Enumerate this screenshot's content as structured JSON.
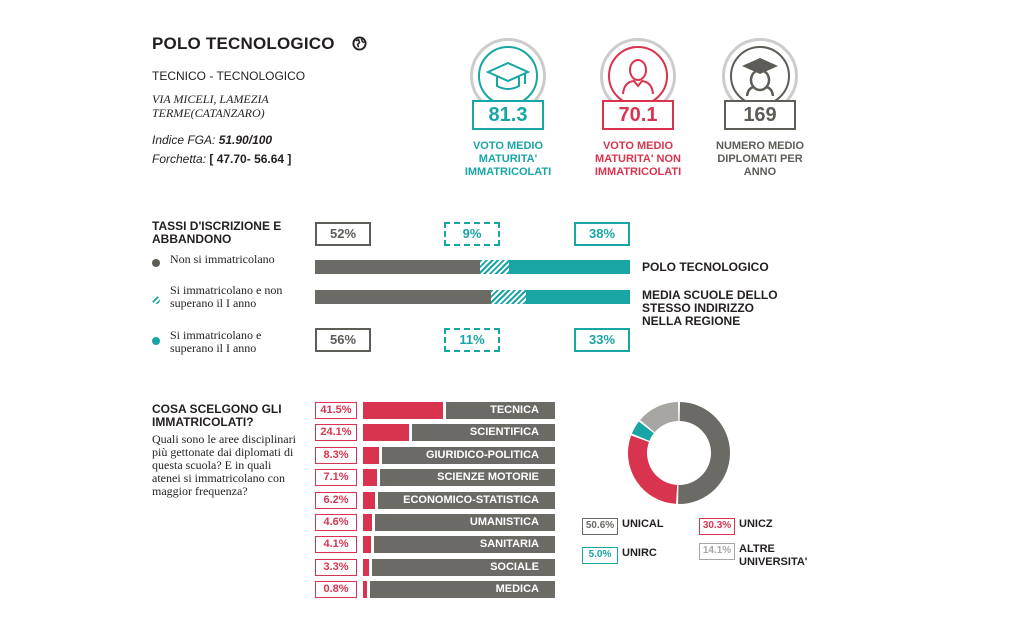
{
  "school": {
    "name": "POLO TECNOLOGICO",
    "type": "TECNICO - TECNOLOGICO",
    "address": "VIA MICELI, LAMEZIA TERME(CATANZARO)",
    "index_label": "Indice FGA:",
    "index_value": "51.90/100",
    "range_label": "Forchetta:",
    "range_value": "[ 47.70- 56.64 ]"
  },
  "stats": [
    {
      "value": "81.3",
      "label": "VOTO MEDIO MATURITA' IMMATRICOLATI",
      "color": "#1aa5a5",
      "icon": "graduation-cap-icon"
    },
    {
      "value": "70.1",
      "label": "VOTO MEDIO MATURITA' NON IMMATRICOLATI",
      "color": "#d9344f",
      "icon": "person-icon"
    },
    {
      "value": "169",
      "label": "NUMERO MEDIO DIPLOMATI PER ANNO",
      "color": "#5d5c57",
      "icon": "graduate-icon"
    }
  ],
  "enrollment": {
    "heading": "TASSI D'ISCRIZIONE E ABBANDONO",
    "legend": [
      {
        "label": "Non si immatricolano",
        "color": "#5d5c57"
      },
      {
        "label": "Si immatricolano e non superano il I anno",
        "color": "#1aa5a5",
        "pattern": "hatched"
      },
      {
        "label": "Si immatricolano e superano il I anno",
        "color": "#1aa5a5"
      }
    ],
    "school": {
      "label": "POLO TECNOLOGICO",
      "values": [
        "52%",
        "9%",
        "38%"
      ],
      "fractions": [
        0.52,
        0.09,
        0.38
      ]
    },
    "region": {
      "label": "MEDIA SCUOLE DELLO STESSO INDIRIZZO NELLA REGIONE",
      "values": [
        "56%",
        "11%",
        "33%"
      ],
      "fractions": [
        0.56,
        0.11,
        0.33
      ]
    }
  },
  "choices": {
    "heading": "COSA SCELGONO GLI IMMATRICOLATI?",
    "question": "Quali sono le aree disciplinari più gettonate dai diplomati di questa scuola? E in quali atenei si immatricolano con maggior frequenza?",
    "areas": [
      {
        "pct": "41.5%",
        "value": 41.5,
        "label": "TECNICA"
      },
      {
        "pct": "24.1%",
        "value": 24.1,
        "label": "SCIENTIFICA"
      },
      {
        "pct": "8.3%",
        "value": 8.3,
        "label": "GIURIDICO-POLITICA"
      },
      {
        "pct": "7.1%",
        "value": 7.1,
        "label": "SCIENZE MOTORIE"
      },
      {
        "pct": "6.2%",
        "value": 6.2,
        "label": "ECONOMICO-STATISTICA"
      },
      {
        "pct": "4.6%",
        "value": 4.6,
        "label": "UMANISTICA"
      },
      {
        "pct": "4.1%",
        "value": 4.1,
        "label": "SANITARIA"
      },
      {
        "pct": "3.3%",
        "value": 3.3,
        "label": "SOCIALE"
      },
      {
        "pct": "0.8%",
        "value": 0.8,
        "label": "MEDICA"
      }
    ],
    "universities": [
      {
        "pct": "50.6%",
        "value": 50.6,
        "label": "UNICAL",
        "color": "#6b6a65"
      },
      {
        "pct": "30.3%",
        "value": 30.3,
        "label": "UNICZ",
        "color": "#d9344f"
      },
      {
        "pct": "5.0%",
        "value": 5.0,
        "label": "UNIRC",
        "color": "#1aa5a5"
      },
      {
        "pct": "14.1%",
        "value": 14.1,
        "label": "ALTRE UNIVERSITA'",
        "color": "#a7a6a3"
      }
    ]
  }
}
